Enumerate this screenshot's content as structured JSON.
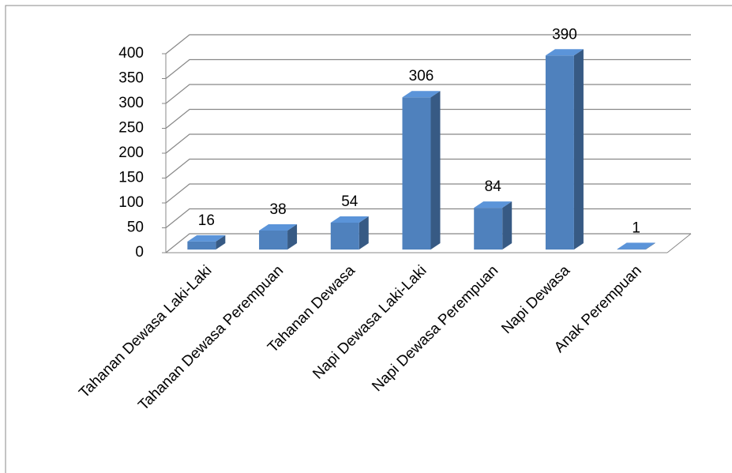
{
  "chart_data": {
    "type": "bar3d",
    "categories": [
      "Tahanan Dewasa Laki-Laki",
      "Tahanan Dewasa Perempuan",
      "Tahanan Dewasa",
      "Napi Dewasa Laki-Laki",
      "Napi Dewasa Perempuan",
      "Napi Dewasa",
      "Anak Perempuan"
    ],
    "values": [
      16,
      38,
      54,
      306,
      84,
      390,
      1
    ],
    "color": "#4f81bd",
    "ylim": [
      0,
      400
    ],
    "yticks": [
      0,
      50,
      100,
      150,
      200,
      250,
      300,
      350,
      400
    ],
    "grid": true
  }
}
